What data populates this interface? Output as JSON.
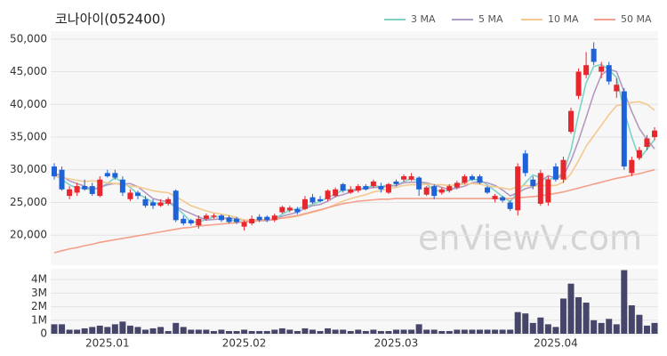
{
  "chart_data": {
    "type": "candlestick",
    "title": "코나아이(052400)",
    "watermark": "enViewV.com",
    "categories": [
      null,
      null,
      null,
      null,
      null,
      null,
      null,
      "2025.01",
      null,
      null,
      null,
      null,
      null,
      null,
      null,
      null,
      null,
      null,
      null,
      null,
      null,
      null,
      null,
      null,
      null,
      "2025.02",
      null,
      null,
      null,
      null,
      null,
      null,
      null,
      null,
      null,
      null,
      null,
      null,
      null,
      null,
      null,
      null,
      null,
      null,
      null,
      "2025.03",
      null,
      null,
      null,
      null,
      null,
      null,
      null,
      null,
      null,
      null,
      null,
      null,
      null,
      null,
      null,
      null,
      null,
      null,
      null,
      null,
      "2025.04",
      null,
      null,
      null,
      null,
      null,
      null,
      null,
      null,
      null,
      null,
      null,
      null,
      null
    ],
    "up_color": "#e8262d",
    "down_color": "#1d62d9",
    "open": [
      30500,
      30000,
      26000,
      26500,
      27500,
      27500,
      26000,
      29500,
      29500,
      28500,
      25500,
      26500,
      25500,
      25000,
      24500,
      24800,
      26800,
      22500,
      22300,
      21500,
      22500,
      22800,
      23000,
      22700,
      22500,
      21300,
      21800,
      22800,
      22800,
      22300,
      23500,
      23800,
      24000,
      24000,
      25800,
      25500,
      25500,
      26000,
      27800,
      26500,
      26800,
      27500,
      27500,
      27500,
      26500,
      28200,
      28500,
      28500,
      28800,
      26200,
      27500,
      26500,
      26800,
      27300,
      28000,
      29000,
      29000,
      27300,
      25500,
      25800,
      25000,
      23800,
      32500,
      28500,
      24800,
      25000,
      30500,
      28500,
      35800,
      41300,
      44500,
      48500,
      45000,
      46000,
      42000,
      42000,
      29500,
      31800,
      33500,
      35000
    ],
    "high": [
      31000,
      30500,
      27500,
      28000,
      28500,
      28000,
      29000,
      30000,
      30000,
      29000,
      27000,
      26800,
      26000,
      25500,
      25500,
      25800,
      27000,
      23000,
      22500,
      23000,
      23300,
      23300,
      23200,
      23000,
      22800,
      22300,
      23000,
      23200,
      23000,
      23300,
      24500,
      24500,
      24300,
      26000,
      26300,
      26000,
      27000,
      27300,
      28000,
      27500,
      27800,
      27800,
      28500,
      28000,
      28000,
      28500,
      29300,
      29500,
      29000,
      27500,
      27800,
      27300,
      27800,
      28300,
      29300,
      29300,
      29300,
      27500,
      26300,
      26000,
      25300,
      31000,
      33000,
      29000,
      30000,
      29000,
      31000,
      32000,
      39500,
      45500,
      48000,
      49500,
      46500,
      46500,
      44000,
      42500,
      32000,
      33500,
      35300,
      36500
    ],
    "low": [
      28500,
      26800,
      25500,
      26000,
      26800,
      26000,
      25800,
      28800,
      28500,
      26000,
      25200,
      25500,
      24200,
      24000,
      24300,
      24500,
      22000,
      21500,
      21500,
      21000,
      22200,
      22500,
      22000,
      21800,
      21700,
      20700,
      21500,
      22000,
      22000,
      22000,
      23300,
      23500,
      23200,
      23800,
      24800,
      25000,
      25200,
      25800,
      26500,
      26300,
      26500,
      26800,
      27200,
      26500,
      26300,
      27500,
      28200,
      28300,
      26000,
      26000,
      25500,
      26200,
      26500,
      27000,
      27800,
      28300,
      27800,
      26300,
      25000,
      25000,
      23700,
      23000,
      29000,
      27000,
      24500,
      24500,
      28200,
      28000,
      35500,
      40800,
      44000,
      46000,
      44000,
      43000,
      41000,
      30000,
      29000,
      31500,
      33000,
      34500
    ],
    "close": [
      29000,
      27000,
      27000,
      27500,
      27000,
      26300,
      28500,
      29000,
      28800,
      26500,
      26500,
      26000,
      24500,
      24500,
      25000,
      25500,
      22300,
      21800,
      21800,
      22500,
      23000,
      23000,
      22300,
      22000,
      22000,
      22000,
      22500,
      22300,
      22300,
      23000,
      24300,
      24200,
      23500,
      25500,
      25000,
      25200,
      26800,
      27000,
      26800,
      27000,
      27500,
      27000,
      28200,
      27000,
      27800,
      27800,
      29000,
      29000,
      27000,
      27300,
      26000,
      27000,
      27500,
      28000,
      29000,
      28500,
      28000,
      26500,
      26000,
      25300,
      24000,
      30500,
      29500,
      27500,
      29500,
      28500,
      28500,
      31500,
      39000,
      45000,
      46000,
      46500,
      45800,
      43500,
      43000,
      30500,
      31500,
      33000,
      34800,
      36000
    ],
    "ma": [
      {
        "name": "3 MA",
        "color": "#7dd3c6",
        "values": [
          29300,
          28500,
          27700,
          27200,
          27200,
          26900,
          27300,
          27900,
          28800,
          28100,
          27300,
          26300,
          25700,
          25000,
          24700,
          25000,
          24300,
          23200,
          22000,
          22000,
          22400,
          22800,
          22800,
          22400,
          22100,
          22000,
          22200,
          22300,
          22400,
          22500,
          23200,
          23800,
          24000,
          24400,
          24700,
          25200,
          25700,
          26300,
          26900,
          26900,
          27100,
          27200,
          27600,
          27400,
          27700,
          27500,
          28200,
          28600,
          28300,
          27800,
          26800,
          26800,
          26800,
          27500,
          28200,
          28500,
          28500,
          27700,
          26800,
          25900,
          25100,
          26600,
          28000,
          29200,
          28800,
          28500,
          28800,
          29500,
          33000,
          38500,
          43300,
          45800,
          46100,
          45300,
          44100,
          39000,
          35000,
          31700,
          33100,
          34600
        ]
      },
      {
        "name": "5 MA",
        "color": "#b19ac2",
        "values": [
          29500,
          29000,
          28300,
          27900,
          27500,
          27000,
          27300,
          27700,
          27900,
          27800,
          27900,
          27400,
          26500,
          25600,
          25300,
          25100,
          24400,
          23800,
          23300,
          22800,
          22300,
          22400,
          22500,
          22600,
          22500,
          22300,
          22200,
          22200,
          22200,
          22400,
          22900,
          23200,
          23500,
          24100,
          24500,
          24700,
          25200,
          25900,
          26200,
          26600,
          27000,
          27100,
          27300,
          27300,
          27500,
          27600,
          28000,
          28100,
          28100,
          28000,
          27700,
          27300,
          27000,
          27200,
          27500,
          28000,
          28200,
          28000,
          27600,
          26900,
          26000,
          26500,
          27100,
          27400,
          28200,
          29100,
          28700,
          29100,
          31400,
          34500,
          38000,
          41600,
          44500,
          45400,
          45000,
          41900,
          38900,
          36300,
          34600,
          33200
        ]
      },
      {
        "name": "10 MA",
        "color": "#f3c98e",
        "values": [
          29000,
          28800,
          28600,
          28400,
          28200,
          28300,
          28200,
          28000,
          27900,
          27700,
          27500,
          27400,
          27100,
          26800,
          26600,
          26500,
          25900,
          25200,
          24500,
          24100,
          23700,
          23400,
          23200,
          23000,
          22700,
          22300,
          22300,
          22400,
          22400,
          22500,
          22600,
          22700,
          22900,
          23200,
          23500,
          23800,
          24200,
          24700,
          25200,
          25600,
          25900,
          26200,
          26600,
          26800,
          27100,
          27300,
          27600,
          27700,
          27700,
          27800,
          27700,
          27700,
          27600,
          27700,
          27800,
          27900,
          27800,
          27500,
          27400,
          27200,
          27000,
          27400,
          27600,
          27500,
          27600,
          27600,
          27600,
          28100,
          29400,
          31400,
          33600,
          35200,
          36800,
          38400,
          39800,
          40000,
          40300,
          40400,
          40000,
          39100
        ]
      },
      {
        "name": "50 MA",
        "color": "#f4a08a",
        "values": [
          17300,
          17600,
          17900,
          18100,
          18400,
          18600,
          18900,
          19100,
          19300,
          19500,
          19700,
          19900,
          20100,
          20300,
          20500,
          20700,
          20900,
          21100,
          21200,
          21400,
          21500,
          21600,
          21700,
          21800,
          21900,
          22000,
          22100,
          22200,
          22300,
          22400,
          22600,
          22800,
          23000,
          23300,
          23600,
          23900,
          24200,
          24500,
          24800,
          25000,
          25200,
          25300,
          25400,
          25500,
          25500,
          25600,
          25600,
          25600,
          25600,
          25600,
          25600,
          25600,
          25600,
          25600,
          25600,
          25600,
          25600,
          25600,
          25600,
          25600,
          25600,
          25700,
          25800,
          25900,
          26000,
          26200,
          26400,
          26600,
          26900,
          27200,
          27500,
          27800,
          28100,
          28400,
          28700,
          28900,
          29200,
          29400,
          29700,
          30000
        ]
      }
    ],
    "ylim": [
      15400,
      51200
    ],
    "yticks": [
      {
        "value": 20000,
        "label": "20,000"
      },
      {
        "value": 25000,
        "label": "25,000"
      },
      {
        "value": 30000,
        "label": "30,000"
      },
      {
        "value": 35000,
        "label": "35,000"
      },
      {
        "value": 40000,
        "label": "40,000"
      },
      {
        "value": 45000,
        "label": "45,000"
      },
      {
        "value": 50000,
        "label": "50,000"
      }
    ],
    "grid": true,
    "legend": "top-right",
    "volume": {
      "color": "#46466a",
      "values": [
        700000,
        700000,
        300000,
        300000,
        400000,
        500000,
        600000,
        500000,
        700000,
        900000,
        600000,
        500000,
        300000,
        400000,
        500000,
        200000,
        800000,
        500000,
        300000,
        300000,
        300000,
        200000,
        300000,
        200000,
        200000,
        300000,
        200000,
        200000,
        200000,
        300000,
        400000,
        300000,
        200000,
        400000,
        300000,
        200000,
        400000,
        300000,
        300000,
        200000,
        300000,
        200000,
        300000,
        200000,
        200000,
        300000,
        300000,
        300000,
        700000,
        300000,
        300000,
        200000,
        200000,
        300000,
        300000,
        300000,
        300000,
        300000,
        300000,
        300000,
        300000,
        1600000,
        1500000,
        800000,
        1200000,
        700000,
        500000,
        2600000,
        3700000,
        2700000,
        2300000,
        1000000,
        800000,
        1100000,
        700000,
        4700000,
        2100000,
        1400000,
        600000,
        800000
      ],
      "ylim": [
        0,
        4800000
      ],
      "yticks": [
        0,
        {
          "value": 1000000,
          "label": "1M"
        },
        {
          "value": 2000000,
          "label": "2M"
        },
        {
          "value": 3000000,
          "label": "3M"
        },
        {
          "value": 4000000,
          "label": "4M"
        }
      ]
    }
  }
}
